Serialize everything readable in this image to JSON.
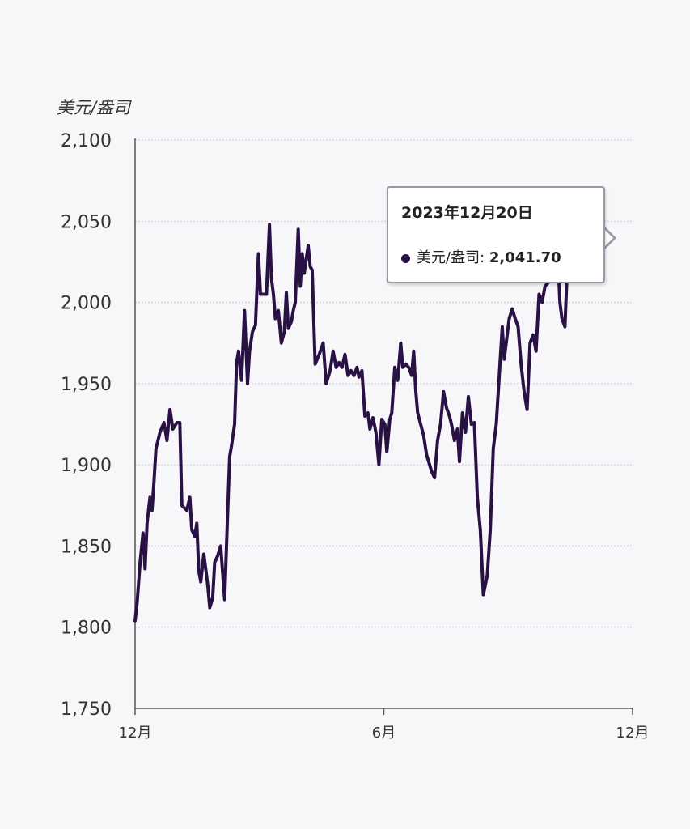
{
  "chart_data": {
    "type": "line",
    "ylabel": "美元/盎司",
    "xlabel": "",
    "title": "",
    "ylim": [
      1750,
      2100
    ],
    "yticks": [
      "2,100",
      "2,050",
      "2,000",
      "1,950",
      "1,900",
      "1,850",
      "1,800",
      "1,750"
    ],
    "ytick_values": [
      2100,
      2050,
      2000,
      1950,
      1900,
      1850,
      1800,
      1750
    ],
    "xticks": [
      {
        "label": "12月",
        "t": 0
      },
      {
        "label": "6月",
        "t": 0.5
      },
      {
        "label": "12月",
        "t": 1
      }
    ],
    "grid": true,
    "colors": {
      "line": "#2a1145",
      "grid": "#c8c8d8",
      "axis": "#555555"
    },
    "series": [
      {
        "name": "美元/盎司",
        "points": [
          [
            0.0,
            1804
          ],
          [
            0.004,
            1815
          ],
          [
            0.01,
            1840
          ],
          [
            0.016,
            1858
          ],
          [
            0.02,
            1836
          ],
          [
            0.024,
            1864
          ],
          [
            0.03,
            1880
          ],
          [
            0.034,
            1872
          ],
          [
            0.038,
            1890
          ],
          [
            0.042,
            1910
          ],
          [
            0.05,
            1920
          ],
          [
            0.058,
            1926
          ],
          [
            0.064,
            1915
          ],
          [
            0.07,
            1934
          ],
          [
            0.076,
            1922
          ],
          [
            0.084,
            1926
          ],
          [
            0.09,
            1926
          ],
          [
            0.094,
            1875
          ],
          [
            0.104,
            1872
          ],
          [
            0.11,
            1880
          ],
          [
            0.114,
            1860
          ],
          [
            0.12,
            1856
          ],
          [
            0.124,
            1864
          ],
          [
            0.128,
            1835
          ],
          [
            0.132,
            1828
          ],
          [
            0.138,
            1845
          ],
          [
            0.142,
            1836
          ],
          [
            0.146,
            1826
          ],
          [
            0.15,
            1812
          ],
          [
            0.156,
            1818
          ],
          [
            0.16,
            1840
          ],
          [
            0.166,
            1844
          ],
          [
            0.172,
            1850
          ],
          [
            0.18,
            1817
          ],
          [
            0.186,
            1870
          ],
          [
            0.19,
            1905
          ],
          [
            0.194,
            1912
          ],
          [
            0.2,
            1925
          ],
          [
            0.204,
            1963
          ],
          [
            0.208,
            1970
          ],
          [
            0.214,
            1952
          ],
          [
            0.22,
            1995
          ],
          [
            0.226,
            1950
          ],
          [
            0.23,
            1970
          ],
          [
            0.236,
            1982
          ],
          [
            0.242,
            1986
          ],
          [
            0.248,
            2030
          ],
          [
            0.252,
            2005
          ],
          [
            0.258,
            2005
          ],
          [
            0.264,
            2005
          ],
          [
            0.27,
            2048
          ],
          [
            0.274,
            2015
          ],
          [
            0.278,
            2005
          ],
          [
            0.282,
            1990
          ],
          [
            0.288,
            1995
          ],
          [
            0.294,
            1975
          ],
          [
            0.3,
            1982
          ],
          [
            0.304,
            2006
          ],
          [
            0.308,
            1984
          ],
          [
            0.314,
            1988
          ],
          [
            0.318,
            1995
          ],
          [
            0.322,
            2000
          ],
          [
            0.328,
            2045
          ],
          [
            0.332,
            2010
          ],
          [
            0.336,
            2030
          ],
          [
            0.34,
            2018
          ],
          [
            0.348,
            2035
          ],
          [
            0.352,
            2022
          ],
          [
            0.356,
            2020
          ],
          [
            0.362,
            1962
          ],
          [
            0.37,
            1968
          ],
          [
            0.378,
            1975
          ],
          [
            0.384,
            1950
          ],
          [
            0.392,
            1958
          ],
          [
            0.398,
            1970
          ],
          [
            0.404,
            1960
          ],
          [
            0.41,
            1963
          ],
          [
            0.416,
            1960
          ],
          [
            0.422,
            1968
          ],
          [
            0.428,
            1955
          ],
          [
            0.434,
            1958
          ],
          [
            0.44,
            1955
          ],
          [
            0.446,
            1960
          ],
          [
            0.45,
            1954
          ],
          [
            0.456,
            1958
          ],
          [
            0.462,
            1930
          ],
          [
            0.468,
            1932
          ],
          [
            0.472,
            1922
          ],
          [
            0.478,
            1929
          ],
          [
            0.484,
            1920
          ],
          [
            0.49,
            1900
          ],
          [
            0.496,
            1928
          ],
          [
            0.502,
            1925
          ],
          [
            0.506,
            1908
          ],
          [
            0.512,
            1928
          ],
          [
            0.516,
            1932
          ],
          [
            0.522,
            1960
          ],
          [
            0.528,
            1952
          ],
          [
            0.534,
            1975
          ],
          [
            0.538,
            1960
          ],
          [
            0.544,
            1962
          ],
          [
            0.55,
            1960
          ],
          [
            0.556,
            1955
          ],
          [
            0.56,
            1970
          ],
          [
            0.564,
            1946
          ],
          [
            0.568,
            1932
          ],
          [
            0.574,
            1925
          ],
          [
            0.58,
            1918
          ],
          [
            0.586,
            1906
          ],
          [
            0.592,
            1900
          ],
          [
            0.596,
            1896
          ],
          [
            0.602,
            1892
          ],
          [
            0.608,
            1915
          ],
          [
            0.614,
            1925
          ],
          [
            0.62,
            1945
          ],
          [
            0.626,
            1935
          ],
          [
            0.632,
            1930
          ],
          [
            0.636,
            1925
          ],
          [
            0.642,
            1915
          ],
          [
            0.648,
            1922
          ],
          [
            0.652,
            1902
          ],
          [
            0.658,
            1932
          ],
          [
            0.664,
            1920
          ],
          [
            0.67,
            1942
          ],
          [
            0.676,
            1925
          ],
          [
            0.682,
            1926
          ],
          [
            0.688,
            1880
          ],
          [
            0.694,
            1860
          ],
          [
            0.7,
            1820
          ],
          [
            0.708,
            1832
          ],
          [
            0.714,
            1860
          ],
          [
            0.72,
            1910
          ],
          [
            0.726,
            1925
          ],
          [
            0.732,
            1955
          ],
          [
            0.738,
            1985
          ],
          [
            0.742,
            1965
          ],
          [
            0.748,
            1980
          ],
          [
            0.752,
            1990
          ],
          [
            0.758,
            1996
          ],
          [
            0.764,
            1990
          ],
          [
            0.77,
            1985
          ],
          [
            0.776,
            1962
          ],
          [
            0.782,
            1945
          ],
          [
            0.788,
            1934
          ],
          [
            0.794,
            1975
          ],
          [
            0.8,
            1980
          ],
          [
            0.806,
            1970
          ],
          [
            0.812,
            2005
          ],
          [
            0.818,
            2000
          ],
          [
            0.824,
            2010
          ],
          [
            0.83,
            2012
          ],
          [
            0.836,
            2020
          ],
          [
            0.842,
            2015
          ],
          [
            0.848,
            2040
          ],
          [
            0.854,
            2000
          ],
          [
            0.858,
            1990
          ],
          [
            0.864,
            1985
          ],
          [
            0.87,
            2030
          ],
          [
            0.874,
            2045
          ],
          [
            0.88,
            2030
          ],
          [
            0.886,
            2041.7
          ]
        ]
      }
    ],
    "tooltip": {
      "date": "2023年12月20日",
      "series_label": "美元/盎司:",
      "value": "2,041.70",
      "t": 0.886
    }
  }
}
